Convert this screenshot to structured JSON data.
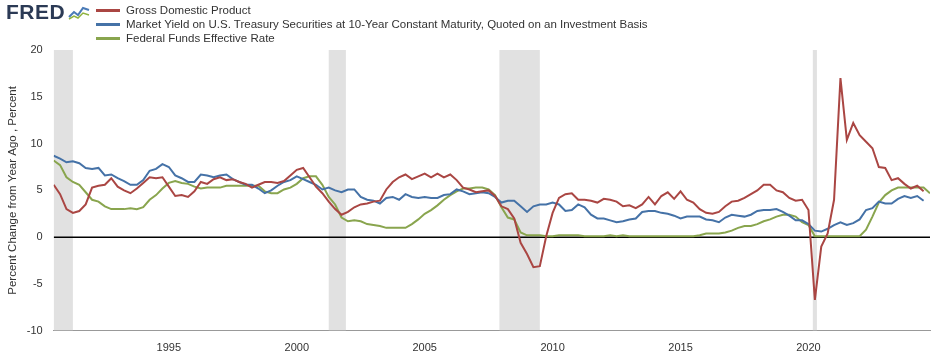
{
  "chart_data": {
    "type": "line",
    "logo": "FRED",
    "y_label": "Percent Change from Year Ago , Percent",
    "legend": "top-left",
    "grid": false,
    "reference_line": 0,
    "xlim": [
      1990.5,
      2024.75
    ],
    "xticks": [
      1995,
      2000,
      2005,
      2010,
      2015,
      2020
    ],
    "ylim": [
      -10,
      20
    ],
    "yticks": [
      -10,
      -5,
      0,
      5,
      10,
      15,
      20
    ],
    "recessions": [
      [
        1990.5,
        1991.25
      ],
      [
        2001.25,
        2001.92
      ],
      [
        2007.92,
        2009.5
      ],
      [
        2020.17,
        2020.33
      ]
    ],
    "x": [
      1990.5,
      1990.75,
      1991,
      1991.25,
      1991.5,
      1991.75,
      1992,
      1992.25,
      1992.5,
      1992.75,
      1993,
      1993.25,
      1993.5,
      1993.75,
      1994,
      1994.25,
      1994.5,
      1994.75,
      1995,
      1995.25,
      1995.5,
      1995.75,
      1996,
      1996.25,
      1996.5,
      1996.75,
      1997,
      1997.25,
      1997.5,
      1997.75,
      1998,
      1998.25,
      1998.5,
      1998.75,
      1999,
      1999.25,
      1999.5,
      1999.75,
      2000,
      2000.25,
      2000.5,
      2000.75,
      2001,
      2001.25,
      2001.5,
      2001.75,
      2002,
      2002.25,
      2002.5,
      2002.75,
      2003,
      2003.25,
      2003.5,
      2003.75,
      2004,
      2004.25,
      2004.5,
      2004.75,
      2005,
      2005.25,
      2005.5,
      2005.75,
      2006,
      2006.25,
      2006.5,
      2006.75,
      2007,
      2007.25,
      2007.5,
      2007.75,
      2008,
      2008.25,
      2008.5,
      2008.75,
      2009,
      2009.25,
      2009.5,
      2009.75,
      2010,
      2010.25,
      2010.5,
      2010.75,
      2011,
      2011.25,
      2011.5,
      2011.75,
      2012,
      2012.25,
      2012.5,
      2012.75,
      2013,
      2013.25,
      2013.5,
      2013.75,
      2014,
      2014.25,
      2014.5,
      2014.75,
      2015,
      2015.25,
      2015.5,
      2015.75,
      2016,
      2016.25,
      2016.5,
      2016.75,
      2017,
      2017.25,
      2017.5,
      2017.75,
      2018,
      2018.25,
      2018.5,
      2018.75,
      2019,
      2019.25,
      2019.5,
      2019.75,
      2020,
      2020.25,
      2020.5,
      2020.75,
      2021,
      2021.25,
      2021.5,
      2021.75,
      2022,
      2022.25,
      2022.5,
      2022.75,
      2023,
      2023.25,
      2023.5,
      2023.75,
      2024,
      2024.25,
      2024.5,
      2024.75
    ],
    "series": [
      {
        "name": "Gross Domestic Product",
        "color": "#aa4643",
        "values": [
          5.6,
          4.6,
          3.0,
          2.6,
          2.8,
          3.5,
          5.3,
          5.5,
          5.6,
          6.3,
          5.4,
          5.0,
          4.7,
          5.2,
          5.8,
          6.4,
          6.3,
          6.4,
          5.4,
          4.4,
          4.5,
          4.3,
          4.9,
          5.9,
          5.7,
          6.2,
          6.4,
          6.1,
          6.2,
          5.9,
          5.7,
          5.3,
          5.6,
          5.9,
          5.9,
          5.8,
          6.0,
          6.6,
          7.2,
          7.4,
          6.4,
          5.4,
          4.7,
          3.8,
          3.0,
          2.4,
          2.7,
          3.2,
          3.5,
          3.6,
          3.8,
          3.9,
          5.1,
          5.9,
          6.4,
          6.7,
          6.2,
          6.5,
          6.8,
          6.4,
          6.8,
          6.4,
          6.7,
          6.1,
          5.3,
          5.1,
          4.8,
          4.9,
          5.0,
          4.4,
          3.3,
          3.0,
          2.0,
          -0.6,
          -1.8,
          -3.2,
          -3.1,
          0.1,
          2.6,
          4.2,
          4.6,
          4.7,
          4.0,
          4.0,
          3.9,
          3.7,
          4.1,
          4.0,
          3.8,
          3.3,
          3.4,
          3.1,
          3.5,
          4.3,
          3.5,
          4.4,
          4.8,
          4.1,
          4.9,
          4.0,
          3.7,
          3.0,
          2.6,
          2.5,
          2.7,
          3.3,
          3.8,
          3.9,
          4.2,
          4.6,
          5.0,
          5.6,
          5.6,
          5.0,
          4.8,
          4.2,
          3.9,
          4.0,
          2.9,
          -6.7,
          -1.0,
          0.4,
          4.0,
          17.0,
          10.4,
          12.2,
          10.9,
          10.2,
          9.5,
          7.5,
          7.4,
          6.1,
          6.3,
          5.7,
          5.2,
          5.5,
          4.9,
          null
        ]
      },
      {
        "name": "Market Yield on U.S. Treasury Securities at 10-Year Constant Maturity, Quoted on an Investment Basis",
        "color": "#4572a7",
        "values": [
          8.7,
          8.4,
          8.0,
          8.1,
          7.9,
          7.4,
          7.3,
          7.4,
          6.6,
          6.7,
          6.3,
          6.0,
          5.6,
          5.6,
          6.1,
          7.1,
          7.3,
          7.8,
          7.5,
          6.6,
          6.3,
          5.9,
          5.9,
          6.7,
          6.6,
          6.4,
          6.6,
          6.7,
          6.2,
          5.9,
          5.6,
          5.6,
          5.2,
          4.7,
          5.0,
          5.5,
          5.9,
          6.1,
          6.5,
          6.2,
          5.9,
          5.6,
          5.1,
          5.3,
          5.0,
          4.8,
          5.1,
          5.1,
          4.3,
          4.0,
          3.9,
          3.6,
          4.2,
          4.3,
          4.0,
          4.6,
          4.3,
          4.2,
          4.3,
          4.2,
          4.2,
          4.5,
          4.6,
          5.1,
          4.9,
          4.6,
          4.7,
          4.8,
          4.7,
          4.3,
          3.7,
          3.9,
          3.9,
          3.3,
          2.7,
          3.3,
          3.5,
          3.5,
          3.7,
          3.5,
          2.8,
          2.9,
          3.5,
          3.2,
          2.4,
          2.0,
          2.0,
          1.8,
          1.6,
          1.7,
          1.9,
          2.0,
          2.7,
          2.8,
          2.8,
          2.6,
          2.5,
          2.3,
          2.0,
          2.2,
          2.2,
          2.2,
          1.9,
          1.8,
          1.6,
          2.1,
          2.4,
          2.3,
          2.2,
          2.4,
          2.8,
          2.9,
          2.9,
          3.0,
          2.7,
          2.3,
          1.8,
          1.8,
          1.4,
          0.7,
          0.6,
          0.9,
          1.3,
          1.6,
          1.3,
          1.5,
          1.9,
          2.9,
          3.1,
          3.8,
          3.6,
          3.6,
          4.1,
          4.4,
          4.2,
          4.4,
          3.9,
          null
        ]
      },
      {
        "name": "Federal Funds Effective Rate",
        "color": "#89a54e",
        "values": [
          8.2,
          7.7,
          6.4,
          5.9,
          5.6,
          4.8,
          4.0,
          3.8,
          3.3,
          3.0,
          3.0,
          3.0,
          3.1,
          3.0,
          3.2,
          4.0,
          4.5,
          5.2,
          5.8,
          6.0,
          5.8,
          5.7,
          5.4,
          5.2,
          5.3,
          5.3,
          5.3,
          5.5,
          5.5,
          5.5,
          5.5,
          5.5,
          5.5,
          4.9,
          4.7,
          4.7,
          5.1,
          5.3,
          5.7,
          6.3,
          6.5,
          6.5,
          5.6,
          4.3,
          3.5,
          2.1,
          1.7,
          1.8,
          1.7,
          1.4,
          1.3,
          1.2,
          1.0,
          1.0,
          1.0,
          1.0,
          1.4,
          1.9,
          2.5,
          2.9,
          3.4,
          4.0,
          4.5,
          4.9,
          5.2,
          5.2,
          5.3,
          5.3,
          5.1,
          4.5,
          3.2,
          2.1,
          1.9,
          0.5,
          0.2,
          0.2,
          0.2,
          0.1,
          0.1,
          0.2,
          0.2,
          0.2,
          0.2,
          0.1,
          0.1,
          0.1,
          0.1,
          0.2,
          0.1,
          0.2,
          0.1,
          0.1,
          0.1,
          0.1,
          0.1,
          0.1,
          0.1,
          0.1,
          0.1,
          0.1,
          0.1,
          0.2,
          0.4,
          0.4,
          0.4,
          0.5,
          0.7,
          1.0,
          1.2,
          1.2,
          1.4,
          1.7,
          1.9,
          2.2,
          2.4,
          2.4,
          2.2,
          1.6,
          1.3,
          0.1,
          0.1,
          0.1,
          0.1,
          0.1,
          0.1,
          0.1,
          0.1,
          0.8,
          2.2,
          3.7,
          4.5,
          5.0,
          5.3,
          5.3,
          5.3,
          5.3,
          5.3,
          4.7
        ]
      }
    ]
  }
}
